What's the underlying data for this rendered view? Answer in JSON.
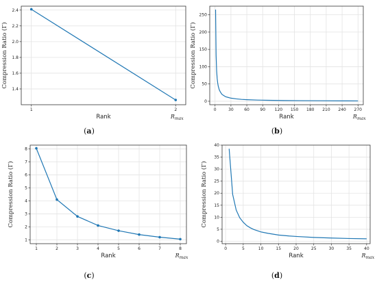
{
  "chart_data": [
    {
      "type": "line",
      "panel": "a",
      "caption": "a",
      "xlabel": "Rank",
      "ylabel": "Compression Ratio (Γ)",
      "x_end_label": "R_max",
      "x": [
        1,
        2
      ],
      "x_ticks": [
        1,
        2
      ],
      "x_ticklabels": [
        "1",
        "2"
      ],
      "y": [
        2.41,
        1.26
      ],
      "ylim": [
        1.2,
        2.45
      ],
      "y_ticks": [
        1.4,
        1.6,
        1.8,
        2.0,
        2.2,
        2.4
      ],
      "markers": true,
      "grid": true,
      "color": "#1f77b4"
    },
    {
      "type": "line",
      "panel": "b",
      "caption": "b",
      "xlabel": "Rank",
      "ylabel": "Compression Ratio (Γ)",
      "x_end_label": "R_max",
      "x": [
        1,
        2,
        3,
        4,
        5,
        6,
        8,
        10,
        13,
        16,
        20,
        25,
        30,
        40,
        50,
        60,
        80,
        100,
        130,
        160,
        200,
        240,
        270
      ],
      "y": [
        265,
        133,
        89,
        66,
        53,
        44,
        33,
        27,
        20,
        17,
        13,
        11,
        9,
        7,
        5.5,
        4.6,
        3.5,
        2.8,
        2.2,
        1.8,
        1.5,
        1.2,
        1.05
      ],
      "x_ticks": [
        0,
        30,
        60,
        90,
        120,
        150,
        180,
        210,
        240,
        270
      ],
      "x_ticklabels": [
        "0",
        "30",
        "60",
        "90",
        "120",
        "150",
        "180",
        "210",
        "240",
        "270"
      ],
      "xlim": [
        -10,
        280
      ],
      "ylim": [
        -10,
        275
      ],
      "y_ticks": [
        0,
        50,
        100,
        150,
        200,
        250
      ],
      "markers": false,
      "grid": true,
      "color": "#1f77b4"
    },
    {
      "type": "line",
      "panel": "c",
      "caption": "c",
      "xlabel": "Rank",
      "ylabel": "Compression Ratio (Γ)",
      "x_end_label": "R_max",
      "x": [
        1,
        2,
        3,
        4,
        5,
        6,
        7,
        8
      ],
      "y": [
        8.05,
        4.1,
        2.8,
        2.1,
        1.7,
        1.4,
        1.2,
        1.05
      ],
      "x_ticks": [
        1,
        2,
        3,
        4,
        5,
        6,
        7,
        8
      ],
      "x_ticklabels": [
        "1",
        "2",
        "3",
        "4",
        "5",
        "6",
        "7",
        "8"
      ],
      "xlim": [
        0.7,
        8.3
      ],
      "ylim": [
        0.7,
        8.3
      ],
      "y_ticks": [
        1,
        2,
        3,
        4,
        5,
        6,
        7,
        8
      ],
      "markers": true,
      "grid": true,
      "color": "#1f77b4"
    },
    {
      "type": "line",
      "panel": "d",
      "caption": "d",
      "xlabel": "Rank",
      "ylabel": "Compression Ratio (Γ)",
      "x_end_label": "R_max",
      "x": [
        1,
        2,
        3,
        4,
        5,
        6,
        7,
        8,
        10,
        12,
        15,
        18,
        20,
        25,
        30,
        35,
        40
      ],
      "y": [
        38.5,
        19.5,
        13,
        9.8,
        7.9,
        6.5,
        5.6,
        4.9,
        3.9,
        3.3,
        2.6,
        2.2,
        2.0,
        1.6,
        1.35,
        1.15,
        1.02
      ],
      "x_ticks": [
        0,
        5,
        10,
        15,
        20,
        25,
        30,
        35,
        40
      ],
      "x_ticklabels": [
        "0",
        "5",
        "10",
        "15",
        "20",
        "25",
        "30",
        "35",
        "40"
      ],
      "xlim": [
        -1,
        41
      ],
      "ylim": [
        -1,
        40
      ],
      "y_ticks": [
        0,
        5,
        10,
        15,
        20,
        25,
        30,
        35,
        40
      ],
      "markers": false,
      "grid": true,
      "color": "#1f77b4"
    }
  ]
}
